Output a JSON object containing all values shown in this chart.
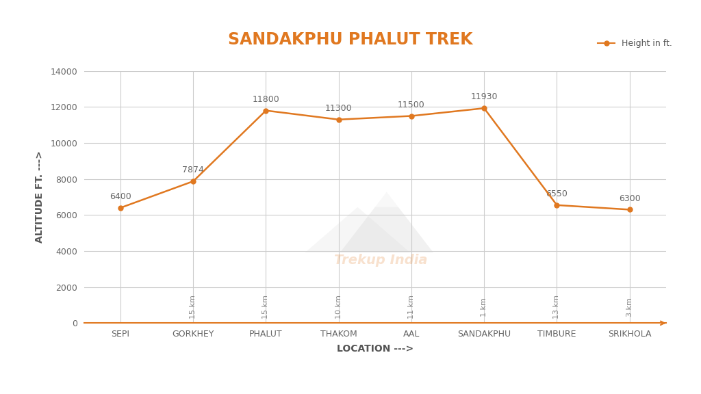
{
  "title": "SANDAKPHU PHALUT TREK",
  "title_color": "#E07820",
  "legend_label": "Height in ft.",
  "locations": [
    "SEPI",
    "GORKHEY",
    "PHALUT",
    "THAKOM",
    "AAL",
    "SANDAKPHU",
    "TIMBURE",
    "SRIKHOLA"
  ],
  "altitudes": [
    6400,
    7874,
    11800,
    11300,
    11500,
    11930,
    6550,
    6300
  ],
  "distances": [
    "15 km",
    "15 km",
    "10 km",
    "11 km",
    "1 km",
    "13 km",
    "3 km"
  ],
  "line_color": "#E07820",
  "marker_color": "#E07820",
  "ylabel": "ALTITUDE FT. --->",
  "xlabel": "LOCATION --->",
  "ylim": [
    0,
    14000
  ],
  "yticks": [
    0,
    2000,
    4000,
    6000,
    8000,
    10000,
    12000,
    14000
  ],
  "grid_color": "#CCCCCC",
  "bg_color": "#FFFFFF",
  "title_fontsize": 17,
  "axis_label_fontsize": 10,
  "tick_fontsize": 9,
  "annotation_fontsize": 9,
  "distance_fontsize": 8,
  "watermark_text": "Trekup India"
}
